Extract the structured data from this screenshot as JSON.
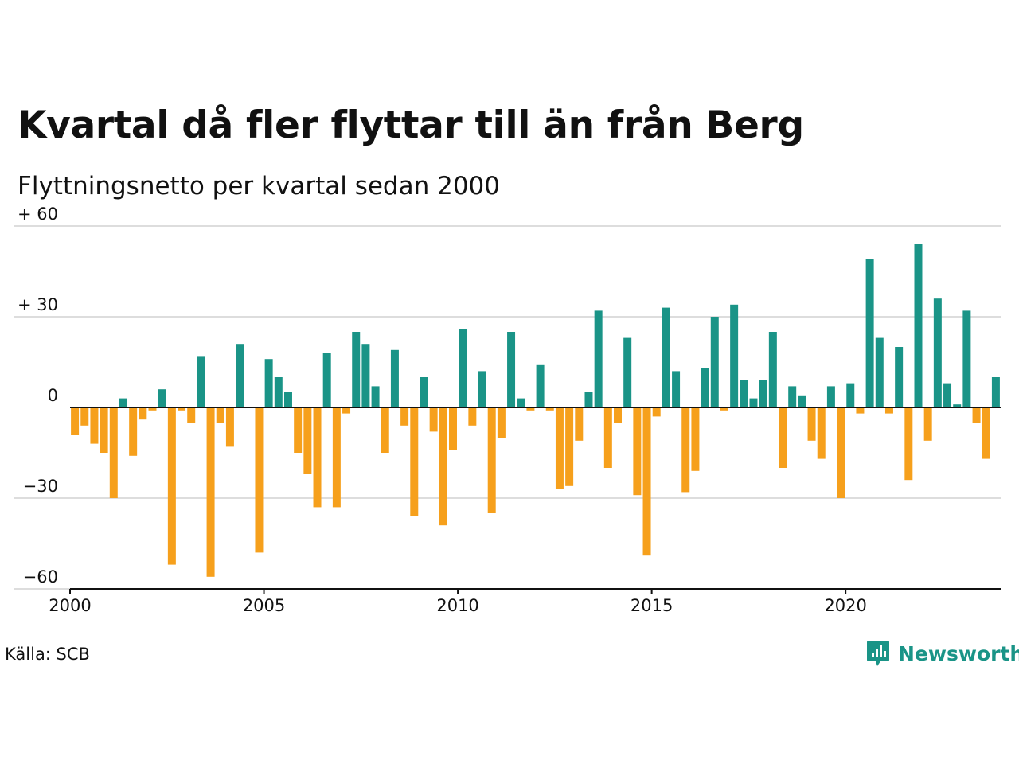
{
  "chart_data": {
    "type": "bar",
    "title": "Kvartal då fler flyttar till än från Berg",
    "subtitle": "Flyttningsnetto per kvartal sedan 2000",
    "xlabel": "",
    "ylabel": "",
    "ylim": [
      -60,
      60
    ],
    "yticks": [
      {
        "value": 60,
        "label": "+ 60"
      },
      {
        "value": 30,
        "label": "+ 30"
      },
      {
        "value": 0,
        "label": "0"
      },
      {
        "value": -30,
        "label": "−30"
      },
      {
        "value": -60,
        "label": "−60"
      }
    ],
    "xlim": [
      2000,
      2024
    ],
    "xticks": [
      2000,
      2005,
      2010,
      2015,
      2020
    ],
    "grid": true,
    "legend": "none",
    "colors": {
      "positive": "#1a9487",
      "negative": "#f6a01c",
      "grid": "#dddddd",
      "axis": "#111111"
    },
    "x": [
      "2000Q1",
      "2000Q2",
      "2000Q3",
      "2000Q4",
      "2001Q1",
      "2001Q2",
      "2001Q3",
      "2001Q4",
      "2002Q1",
      "2002Q2",
      "2002Q3",
      "2002Q4",
      "2003Q1",
      "2003Q2",
      "2003Q3",
      "2003Q4",
      "2004Q1",
      "2004Q2",
      "2004Q3",
      "2004Q4",
      "2005Q1",
      "2005Q2",
      "2005Q3",
      "2005Q4",
      "2006Q1",
      "2006Q2",
      "2006Q3",
      "2006Q4",
      "2007Q1",
      "2007Q2",
      "2007Q3",
      "2007Q4",
      "2008Q1",
      "2008Q2",
      "2008Q3",
      "2008Q4",
      "2009Q1",
      "2009Q2",
      "2009Q3",
      "2009Q4",
      "2010Q1",
      "2010Q2",
      "2010Q3",
      "2010Q4",
      "2011Q1",
      "2011Q2",
      "2011Q3",
      "2011Q4",
      "2012Q1",
      "2012Q2",
      "2012Q3",
      "2012Q4",
      "2013Q1",
      "2013Q2",
      "2013Q3",
      "2013Q4",
      "2014Q1",
      "2014Q2",
      "2014Q3",
      "2014Q4",
      "2015Q1",
      "2015Q2",
      "2015Q3",
      "2015Q4",
      "2016Q1",
      "2016Q2",
      "2016Q3",
      "2016Q4",
      "2017Q1",
      "2017Q2",
      "2017Q3",
      "2017Q4",
      "2018Q1",
      "2018Q2",
      "2018Q3",
      "2018Q4",
      "2019Q1",
      "2019Q2",
      "2019Q3",
      "2019Q4",
      "2020Q1",
      "2020Q2",
      "2020Q3",
      "2020Q4",
      "2021Q1",
      "2021Q2",
      "2021Q3",
      "2021Q4",
      "2022Q1",
      "2022Q2",
      "2022Q3",
      "2022Q4",
      "2023Q1",
      "2023Q2",
      "2023Q3",
      "2023Q4"
    ],
    "values": [
      -9,
      -6,
      -12,
      -15,
      -30,
      3,
      -16,
      -4,
      -1,
      6,
      -52,
      -1,
      -5,
      17,
      -56,
      -5,
      -13,
      21,
      0,
      -48,
      16,
      10,
      5,
      -15,
      -22,
      -33,
      18,
      -33,
      -2,
      25,
      21,
      7,
      -15,
      19,
      -6,
      -36,
      10,
      -8,
      -39,
      -14,
      26,
      -6,
      12,
      -35,
      -10,
      25,
      3,
      -1,
      14,
      -1,
      -27,
      -26,
      -11,
      5,
      32,
      -20,
      -5,
      23,
      -29,
      -49,
      -3,
      33,
      12,
      -28,
      -21,
      13,
      30,
      -1,
      34,
      9,
      3,
      9,
      25,
      -20,
      7,
      4,
      -11,
      -17,
      7,
      -30,
      8,
      -2,
      49,
      23,
      -2,
      20,
      -24,
      54,
      -11,
      36,
      8,
      1,
      32,
      -5,
      -17,
      10
    ]
  },
  "footer": {
    "source": "Källa: SCB",
    "brand": "Newsworthy",
    "brand_color": "#1a9487",
    "brand_icon": "bar-chart-speech-bubble-icon"
  }
}
